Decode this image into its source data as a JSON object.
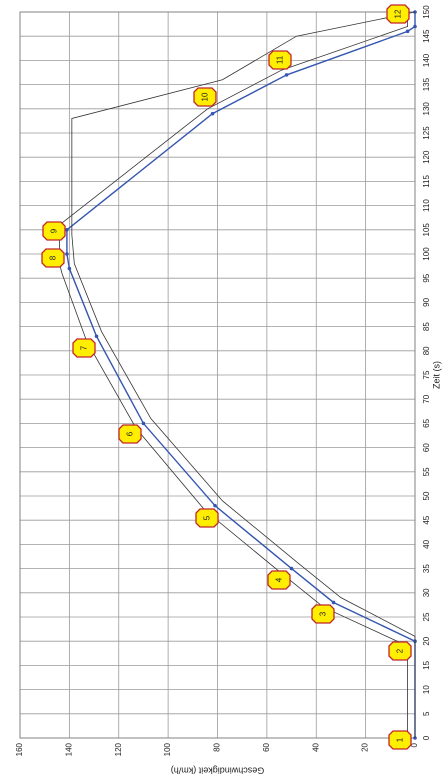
{
  "chart_data": {
    "type": "line",
    "xlabel": "Zeit (s)",
    "ylabel": "Geschwindigkeit (km/h)",
    "xlim": [
      0,
      150
    ],
    "xticks": [
      0,
      5,
      10,
      15,
      20,
      25,
      30,
      35,
      40,
      45,
      50,
      55,
      60,
      65,
      70,
      75,
      80,
      85,
      90,
      95,
      100,
      105,
      110,
      115,
      120,
      125,
      130,
      135,
      140,
      145,
      150
    ],
    "ylim": [
      0,
      160
    ],
    "yticks": [
      0,
      20,
      40,
      60,
      80,
      100,
      120,
      140,
      160
    ],
    "grid": true,
    "series": [
      {
        "color": "#3556b0",
        "markers": true,
        "x": [
          0,
          20,
          28,
          35,
          48,
          65,
          83,
          97,
          100,
          105,
          129,
          137,
          146,
          147,
          150
        ],
        "values": [
          0,
          0,
          33,
          50,
          81,
          110,
          129,
          140,
          141,
          141,
          82,
          52,
          3,
          0,
          0
        ]
      },
      {
        "color": "#333333",
        "markers": false,
        "x": [
          0,
          19,
          27,
          34,
          47,
          64,
          82,
          96,
          98,
          106,
          130,
          138,
          147,
          150
        ],
        "values": [
          3,
          3,
          37,
          54,
          85,
          113,
          133,
          143,
          144,
          144,
          84,
          54,
          3,
          3
        ]
      },
      {
        "color": "#333333",
        "markers": false,
        "x": [
          0,
          21,
          29,
          36,
          49,
          66,
          84,
          98,
          104,
          128,
          136,
          145,
          150
        ],
        "values": [
          0,
          0,
          30,
          47,
          78,
          107,
          127,
          138,
          139,
          139,
          78,
          48,
          0
        ]
      }
    ],
    "annotations": [
      "1",
      "2",
      "3",
      "4",
      "5",
      "6",
      "7",
      "8",
      "9",
      "10",
      "11",
      "12"
    ]
  }
}
